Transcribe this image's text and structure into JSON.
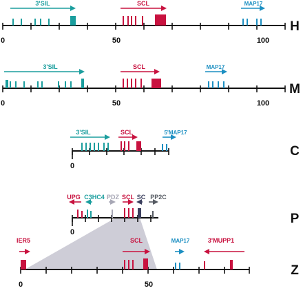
{
  "colors": {
    "teal": "#1b9e9e",
    "crimson": "#c8123f",
    "blue": "#1c8fc2",
    "gray": "#a7a7b5",
    "darkgray": "#555a62",
    "navy": "#3b3f5e",
    "shade": "#c9c8d3",
    "axis": "#111111"
  },
  "species": [
    "H",
    "M",
    "C",
    "P",
    "Z"
  ],
  "ticks": {
    "H": [
      "0",
      "50",
      "100"
    ],
    "M": [
      "0",
      "50",
      "100"
    ],
    "C": [
      "0"
    ],
    "P": [
      "0"
    ],
    "Z": [
      "0",
      "50"
    ]
  },
  "genes": {
    "H": [
      "3'SIL",
      "SCL",
      "MAP17"
    ],
    "M": [
      "3'SIL",
      "SCL",
      "MAP17"
    ],
    "C": [
      "3'SIL",
      "SCL",
      "5'MAP17"
    ],
    "P": [
      "UPG",
      "C3HC4",
      "PDZ",
      "SCL",
      "SC",
      "PP2C"
    ],
    "Z": [
      "IER5",
      "SCL",
      "MAP17",
      "3'MUPP1"
    ]
  }
}
